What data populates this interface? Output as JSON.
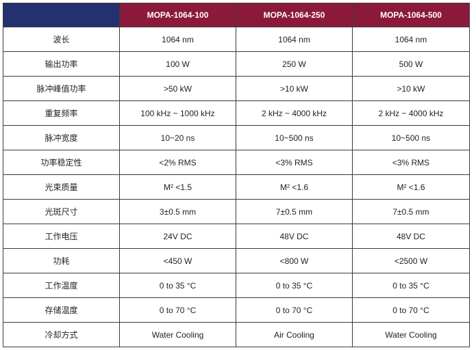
{
  "colors": {
    "header_corner": "#25306e",
    "header_model": "#8b1a3a",
    "border": "#3a3a3a"
  },
  "table": {
    "columns": [
      "",
      "MOPA-1064-100",
      "MOPA-1064-250",
      "MOPA-1064-500"
    ],
    "rows": [
      {
        "param": "波长",
        "values": [
          "1064 nm",
          "1064 nm",
          "1064 nm"
        ]
      },
      {
        "param": "输出功率",
        "values": [
          "100 W",
          "250 W",
          "500 W"
        ]
      },
      {
        "param": "脉冲峰值功率",
        "values": [
          ">50 kW",
          ">10 kW",
          ">10 kW"
        ]
      },
      {
        "param": "重复频率",
        "values": [
          "100 kHz ~ 1000 kHz",
          "2 kHz ~ 4000 kHz",
          "2 kHz ~ 4000 kHz"
        ]
      },
      {
        "param": "脉冲宽度",
        "values": [
          "10~20 ns",
          "10~500 ns",
          "10~500 ns"
        ]
      },
      {
        "param": "功率稳定性",
        "values": [
          "<2% RMS",
          "<3% RMS",
          "<3% RMS"
        ]
      },
      {
        "param": "光束质量",
        "values": [
          "M² <1.5",
          "M² <1.6",
          "M² <1.6"
        ]
      },
      {
        "param": "光斑尺寸",
        "values": [
          "3±0.5 mm",
          "7±0.5 mm",
          "7±0.5 mm"
        ]
      },
      {
        "param": "工作电压",
        "values": [
          "24V DC",
          "48V DC",
          "48V DC"
        ]
      },
      {
        "param": "功耗",
        "values": [
          "<450 W",
          "<800 W",
          "<2500 W"
        ]
      },
      {
        "param": "工作温度",
        "values": [
          "0 to 35 °C",
          "0 to 35 °C",
          "0 to 35 °C"
        ]
      },
      {
        "param": "存储温度",
        "values": [
          "0 to 70 °C",
          "0 to 70 °C",
          "0 to 70 °C"
        ]
      },
      {
        "param": "冷却方式",
        "values": [
          "Water Cooling",
          "Air Cooling",
          "Water Cooling"
        ]
      }
    ]
  }
}
